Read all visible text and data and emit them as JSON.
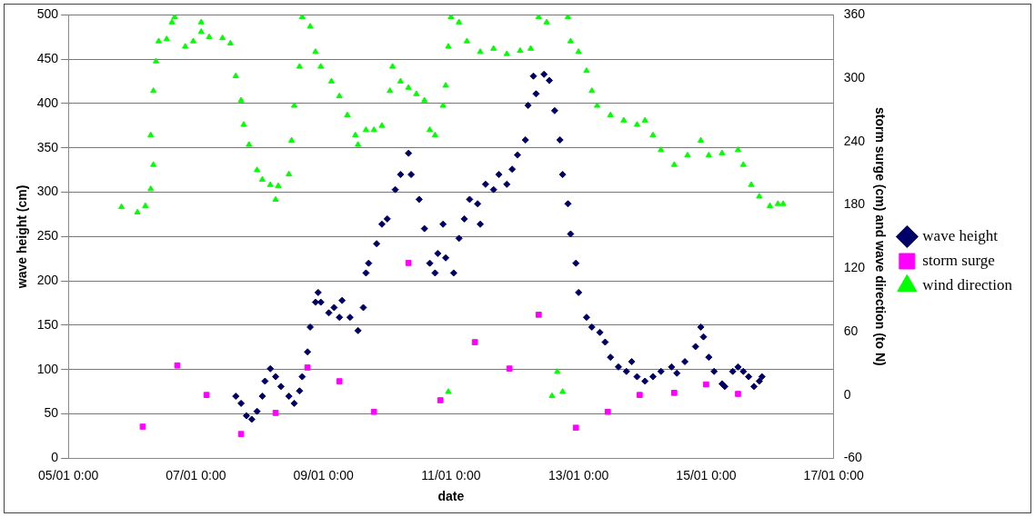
{
  "chart_data": {
    "type": "scatter",
    "xlabel": "date",
    "ylabel": "wave height (cm)",
    "y2label": "storm surge (cm) and wave direction (to N)",
    "xlim": [
      "--01-05T00:00",
      "--01-17T00:00"
    ],
    "xticks": [
      {
        "value": "--01-05T00:00",
        "label": "05/01 0:00"
      },
      {
        "value": "--01-07T00:00",
        "label": "07/01 0:00"
      },
      {
        "value": "--01-09T00:00",
        "label": "09/01 0:00"
      },
      {
        "value": "--01-11T00:00",
        "label": "11/01 0:00"
      },
      {
        "value": "--01-13T00:00",
        "label": "13/01 0:00"
      },
      {
        "value": "--01-15T00:00",
        "label": "15/01 0:00"
      },
      {
        "value": "--01-17T00:00",
        "label": "17/01 0:00"
      }
    ],
    "ylim": [
      0,
      500
    ],
    "yticks": [
      0,
      50,
      100,
      150,
      200,
      250,
      300,
      350,
      400,
      450,
      500
    ],
    "y2lim": [
      -60,
      360
    ],
    "y2ticks": [
      -60,
      0,
      60,
      120,
      180,
      240,
      300,
      360
    ],
    "grid": "y",
    "legend": "right",
    "series": [
      {
        "name": "wave height",
        "color": "#000066",
        "marker": "diamond",
        "x": [
          "--01-07T15:00",
          "--01-07T17:00",
          "--01-07T19:00",
          "--01-07T21:00",
          "--01-07T23:00",
          "--01-08T01:00",
          "--01-08T02:00",
          "--01-08T04:00",
          "--01-08T06:00",
          "--01-08T08:00",
          "--01-08T11:00",
          "--01-08T13:00",
          "--01-08T15:00",
          "--01-08T16:00",
          "--01-08T18:00",
          "--01-08T19:00",
          "--01-08T21:00",
          "--01-08T22:00",
          "--01-08T23:00",
          "--01-09T02:00",
          "--01-09T04:00",
          "--01-09T06:00",
          "--01-09T07:00",
          "--01-09T10:00",
          "--01-09T13:00",
          "--01-09T15:00",
          "--01-09T16:00",
          "--01-09T17:00",
          "--01-09T20:00",
          "--01-09T22:00",
          "--01-10T00:00",
          "--01-10T03:00",
          "--01-10T05:00",
          "--01-10T08:00",
          "--01-10T09:00",
          "--01-10T12:00",
          "--01-10T14:00",
          "--01-10T16:00",
          "--01-10T18:00",
          "--01-10T19:00",
          "--01-10T21:00",
          "--01-10T22:00",
          "--01-11T01:00",
          "--01-11T03:00",
          "--01-11T05:00",
          "--01-11T07:00",
          "--01-11T10:00",
          "--01-11T11:00",
          "--01-11T13:00",
          "--01-11T16:00",
          "--01-11T18:00",
          "--01-11T21:00",
          "--01-11T23:00",
          "--01-12T01:00",
          "--01-12T04:00",
          "--01-12T05:00",
          "--01-12T07:00",
          "--01-12T08:00",
          "--01-12T11:00",
          "--01-12T13:00",
          "--01-12T15:00",
          "--01-12T17:00",
          "--01-12T18:00",
          "--01-12T20:00",
          "--01-12T21:00",
          "--01-12T23:00",
          "--01-13T00:00",
          "--01-13T03:00",
          "--01-13T05:00",
          "--01-13T08:00",
          "--01-13T10:00",
          "--01-13T12:00",
          "--01-13T15:00",
          "--01-13T18:00",
          "--01-13T20:00",
          "--01-13T22:00",
          "--01-14T01:00",
          "--01-14T04:00",
          "--01-14T07:00",
          "--01-14T11:00",
          "--01-14T13:00",
          "--01-14T16:00",
          "--01-14T20:00",
          "--01-14T22:00",
          "--01-14T23:00",
          "--01-15T01:00",
          "--01-15T03:00",
          "--01-15T06:00",
          "--01-15T07:00",
          "--01-15T10:00",
          "--01-15T12:00",
          "--01-15T14:00",
          "--01-15T16:00",
          "--01-15T18:00",
          "--01-15T20:00",
          "--01-15T21:00"
        ],
        "values": [
          70,
          62,
          48,
          44,
          53,
          70,
          87,
          101,
          92,
          81,
          70,
          62,
          76,
          92,
          120,
          148,
          176,
          187,
          176,
          164,
          170,
          159,
          178,
          159,
          144,
          170,
          209,
          220,
          242,
          264,
          270,
          303,
          320,
          344,
          320,
          292,
          259,
          220,
          209,
          231,
          264,
          226,
          209,
          248,
          270,
          292,
          287,
          264,
          309,
          303,
          320,
          309,
          326,
          342,
          359,
          398,
          431,
          411,
          433,
          426,
          392,
          359,
          320,
          287,
          253,
          220,
          187,
          159,
          148,
          142,
          131,
          114,
          103,
          98,
          109,
          92,
          87,
          92,
          98,
          103,
          96,
          109,
          126,
          148,
          137,
          114,
          98,
          84,
          81,
          98,
          103,
          98,
          92,
          81,
          87,
          92
        ]
      },
      {
        "name": "storm surge",
        "color": "#ff00ff",
        "marker": "square",
        "axis": "y2",
        "x": [
          "--01-06T04:00",
          "--01-06T17:00",
          "--01-07T04:00",
          "--01-07T17:00",
          "--01-08T06:00",
          "--01-08T18:00",
          "--01-09T06:00",
          "--01-09T19:00",
          "--01-10T08:00",
          "--01-10T20:00",
          "--01-11T09:00",
          "--01-11T22:00",
          "--01-12T09:00",
          "--01-12T23:00",
          "--01-13T11:00",
          "--01-13T23:00",
          "--01-14T12:00",
          "--01-15T00:00",
          "--01-15T12:00"
        ],
        "values": [
          -30,
          28,
          0,
          -37,
          -17,
          26,
          13,
          -16,
          125,
          -5,
          50,
          25,
          76,
          -31,
          -16,
          0,
          2,
          10,
          1
        ]
      },
      {
        "name": "wind direction",
        "color": "#00ff00",
        "marker": "triangle",
        "axis": "y2",
        "x": [
          "--01-05T20:00",
          "--01-06T02:00",
          "--01-06T05:00",
          "--01-06T07:00",
          "--01-06T08:00",
          "--01-06T07:00",
          "--01-06T08:00",
          "--01-06T09:00",
          "--01-06T10:00",
          "--01-06T13:00",
          "--01-06T15:00",
          "--01-06T16:00",
          "--01-06T20:00",
          "--01-06T23:00",
          "--01-07T02:00",
          "--01-07T02:00",
          "--01-07T05:00",
          "--01-07T10:00",
          "--01-07T13:00",
          "--01-07T15:00",
          "--01-07T17:00",
          "--01-07T18:00",
          "--01-07T20:00",
          "--01-07T23:00",
          "--01-08T01:00",
          "--01-08T04:00",
          "--01-08T06:00",
          "--01-08T07:00",
          "--01-08T11:00",
          "--01-08T12:00",
          "--01-08T13:00",
          "--01-08T15:00",
          "--01-08T16:00",
          "--01-08T19:00",
          "--01-08T21:00",
          "--01-08T23:00",
          "--01-09T03:00",
          "--01-09T06:00",
          "--01-09T09:00",
          "--01-09T12:00",
          "--01-09T13:00",
          "--01-09T16:00",
          "--01-09T19:00",
          "--01-09T22:00",
          "--01-10T01:00",
          "--01-10T02:00",
          "--01-10T05:00",
          "--01-10T08:00",
          "--01-10T11:00",
          "--01-10T14:00",
          "--01-10T16:00",
          "--01-10T18:00",
          "--01-10T21:00",
          "--01-10T22:00",
          "--01-10T23:00",
          "--01-10T23:00",
          "--01-11T00:00",
          "--01-11T03:00",
          "--01-11T06:00",
          "--01-11T11:00",
          "--01-11T16:00",
          "--01-11T21:00",
          "--01-12T02:00",
          "--01-12T06:00",
          "--01-12T09:00",
          "--01-12T12:00",
          "--01-12T14:00",
          "--01-12T16:00",
          "--01-12T18:00",
          "--01-12T20:00",
          "--01-12T21:00",
          "--01-13T00:00",
          "--01-13T03:00",
          "--01-13T05:00",
          "--01-13T07:00",
          "--01-13T12:00",
          "--01-13T17:00",
          "--01-13T22:00",
          "--01-14T01:00",
          "--01-14T04:00",
          "--01-14T07:00",
          "--01-14T12:00",
          "--01-14T17:00",
          "--01-14T22:00",
          "--01-15T01:00",
          "--01-15T06:00",
          "--01-15T12:00",
          "--01-15T14:00",
          "--01-15T17:00",
          "--01-15T20:00",
          "--01-16T00:00",
          "--01-16T03:00",
          "--01-16T05:00"
        ],
        "values": [
          178,
          173,
          179,
          195,
          218,
          246,
          288,
          316,
          335,
          337,
          353,
          358,
          330,
          335,
          344,
          353,
          339,
          338,
          333,
          302,
          279,
          256,
          237,
          213,
          204,
          199,
          185,
          198,
          209,
          241,
          274,
          311,
          358,
          349,
          325,
          311,
          297,
          283,
          265,
          246,
          237,
          251,
          251,
          255,
          288,
          311,
          297,
          291,
          285,
          279,
          251,
          246,
          274,
          293,
          330,
          3,
          358,
          353,
          335,
          325,
          328,
          323,
          326,
          328,
          358,
          353,
          -1,
          22,
          3,
          358,
          335,
          325,
          307,
          288,
          274,
          265,
          260,
          256,
          260,
          246,
          232,
          218,
          227,
          241,
          227,
          229,
          232,
          218,
          199,
          188,
          179,
          181,
          181
        ]
      }
    ]
  }
}
